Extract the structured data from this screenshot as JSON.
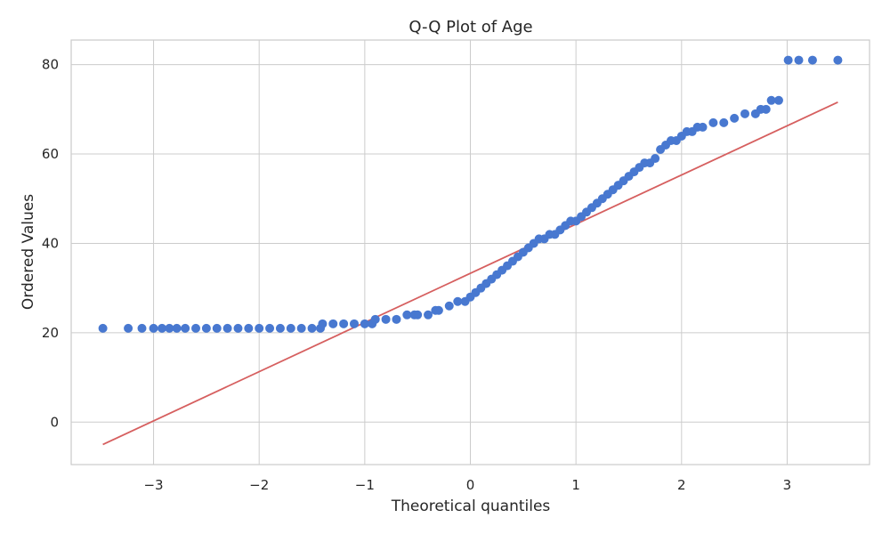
{
  "chart_data": {
    "type": "scatter",
    "title": "Q-Q Plot of Age",
    "xlabel": "Theoretical quantiles",
    "ylabel": "Ordered Values",
    "xlim": [
      -3.78,
      3.78
    ],
    "ylim": [
      -9.5,
      85.5
    ],
    "xticks": [
      -3,
      -2,
      -1,
      0,
      1,
      2,
      3
    ],
    "yticks": [
      0,
      20,
      40,
      60,
      80
    ],
    "grid": true,
    "legend": "none",
    "colors": {
      "points": "#4878d0",
      "fit_line": "#d65f5f",
      "grid": "#cccccc",
      "frame": "#cccccc"
    },
    "fit_line": {
      "x": [
        -3.48,
        3.48
      ],
      "y": [
        -5.0,
        71.6
      ]
    },
    "series": [
      {
        "x": [
          -3.48,
          -3.24,
          -3.11,
          -3.0,
          -2.92,
          -2.85,
          -2.78,
          -2.7,
          -2.6,
          -2.5,
          -2.4,
          -2.3,
          -2.2,
          -2.1,
          -2.0,
          -1.9,
          -1.8,
          -1.7,
          -1.6,
          -1.5,
          -1.42,
          -1.4,
          -1.3,
          -1.2,
          -1.1,
          -1.0,
          -0.93,
          -0.9,
          -0.8,
          -0.7,
          -0.6,
          -0.53,
          -0.5,
          -0.4,
          -0.33,
          -0.3,
          -0.2,
          -0.12,
          -0.05,
          0.0,
          0.05,
          0.1,
          0.15,
          0.2,
          0.25,
          0.3,
          0.35,
          0.4,
          0.45,
          0.5,
          0.55,
          0.6,
          0.65,
          0.7,
          0.75,
          0.8,
          0.85,
          0.9,
          0.95,
          1.0,
          1.05,
          1.1,
          1.15,
          1.2,
          1.25,
          1.3,
          1.35,
          1.4,
          1.45,
          1.5,
          1.55,
          1.6,
          1.65,
          1.7,
          1.75,
          1.8,
          1.85,
          1.9,
          1.95,
          2.0,
          2.05,
          2.1,
          2.15,
          2.2,
          2.3,
          2.4,
          2.5,
          2.6,
          2.7,
          2.75,
          2.8,
          2.85,
          2.92,
          3.01,
          3.11,
          3.24,
          3.48
        ],
        "y": [
          21,
          21,
          21,
          21,
          21,
          21,
          21,
          21,
          21,
          21,
          21,
          21,
          21,
          21,
          21,
          21,
          21,
          21,
          21,
          21,
          21,
          22,
          22,
          22,
          22,
          22,
          22,
          23,
          23,
          23,
          24,
          24,
          24,
          24,
          25,
          25,
          26,
          27,
          27,
          28,
          29,
          30,
          31,
          32,
          33,
          34,
          35,
          36,
          37,
          38,
          39,
          40,
          41,
          41,
          42,
          42,
          43,
          44,
          45,
          45,
          46,
          47,
          48,
          49,
          50,
          51,
          52,
          53,
          54,
          55,
          56,
          57,
          58,
          58,
          59,
          61,
          62,
          63,
          63,
          64,
          65,
          65,
          66,
          66,
          67,
          67,
          68,
          69,
          69,
          70,
          70,
          72,
          72,
          81,
          81,
          81,
          81
        ]
      }
    ]
  }
}
